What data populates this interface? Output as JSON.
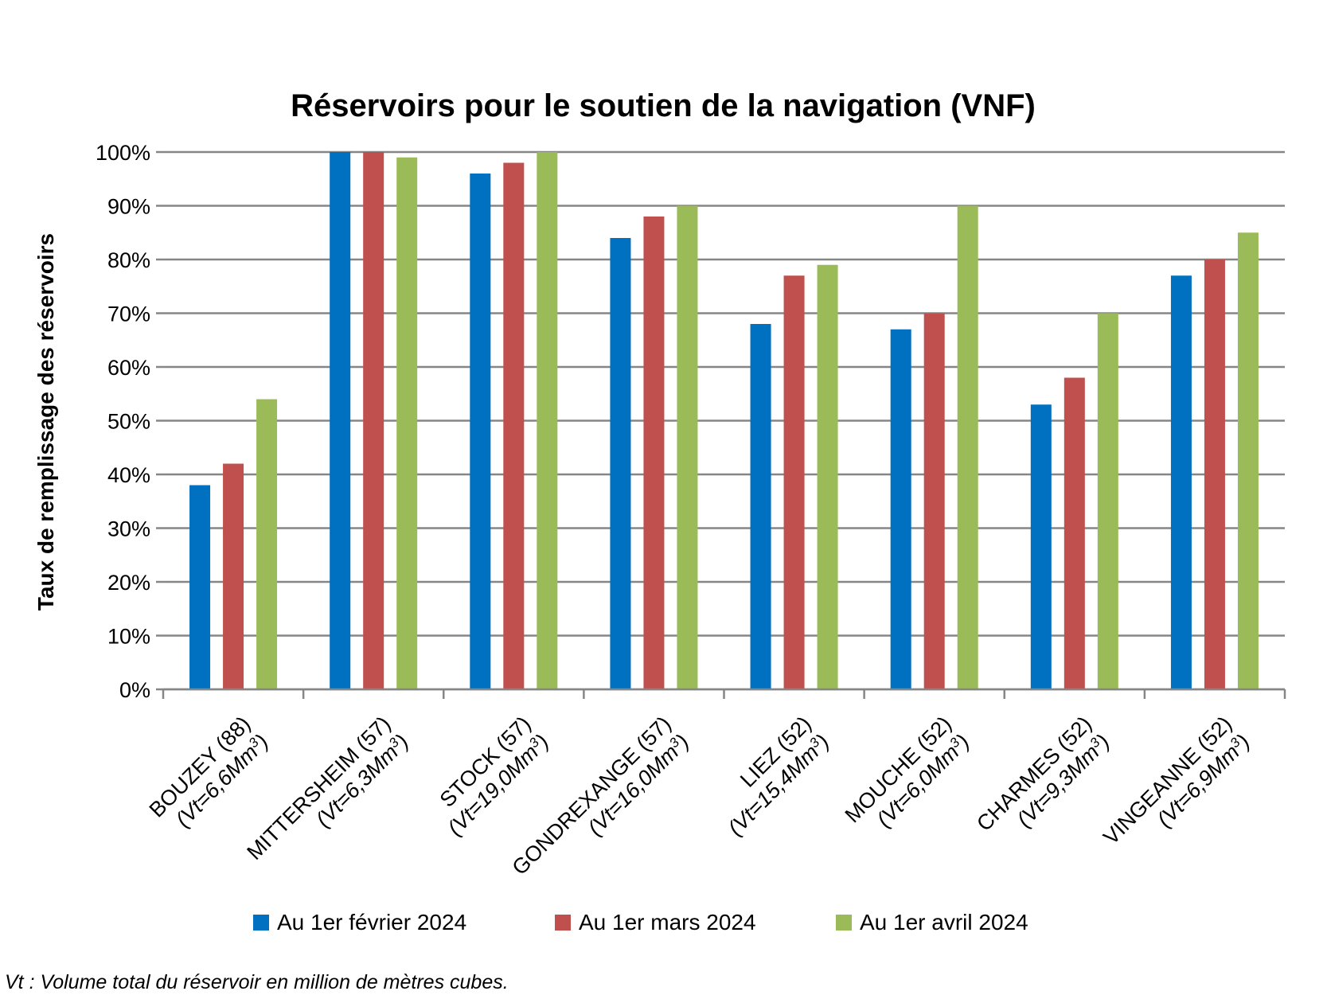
{
  "chart_data": {
    "type": "bar",
    "title": "Réservoirs pour le soutien de la navigation (VNF)",
    "ylabel": "Taux de remplissage des réservoirs",
    "xlabel": "",
    "ylim": [
      0,
      100
    ],
    "y_ticks": [
      "0%",
      "10%",
      "20%",
      "30%",
      "40%",
      "50%",
      "60%",
      "70%",
      "80%",
      "90%",
      "100%"
    ],
    "grid": true,
    "legend_position": "bottom",
    "categories": [
      {
        "name": "BOUZEY (88)",
        "sub_prefix": "(Vt=6,6Mm",
        "sup": "3",
        "sub_suffix": ")"
      },
      {
        "name": "MITTERSHEIM (57)",
        "sub_prefix": "(Vt=6,3Mm",
        "sup": "3",
        "sub_suffix": ")"
      },
      {
        "name": "STOCK (57)",
        "sub_prefix": "(Vt=19,0Mm",
        "sup": "3",
        "sub_suffix": ")"
      },
      {
        "name": "GONDREXANGE (57)",
        "sub_prefix": "(Vt=16,0Mm",
        "sup": "3",
        "sub_suffix": ")"
      },
      {
        "name": "LIEZ (52)",
        "sub_prefix": "(Vt=15,4Mm",
        "sup": "3",
        "sub_suffix": ")"
      },
      {
        "name": "MOUCHE (52)",
        "sub_prefix": "(Vt=6,0Mm",
        "sup": "3",
        "sub_suffix": ")"
      },
      {
        "name": "CHARMES (52)",
        "sub_prefix": "(Vt=9,3Mm",
        "sup": "3",
        "sub_suffix": ")"
      },
      {
        "name": "VINGEANNE (52)",
        "sub_prefix": "(Vt=6,9Mm",
        "sup": "3",
        "sub_suffix": ")"
      }
    ],
    "series": [
      {
        "name": "Au 1er février 2024",
        "color": "#0070c0",
        "values": [
          38,
          100,
          96,
          84,
          68,
          67,
          53,
          77
        ]
      },
      {
        "name": "Au 1er mars 2024",
        "color": "#c0504d",
        "values": [
          42,
          100,
          98,
          88,
          77,
          70,
          58,
          80
        ]
      },
      {
        "name": "Au 1er avril 2024",
        "color": "#9bbb59",
        "values": [
          54,
          99,
          100,
          90,
          79,
          90,
          70,
          85
        ]
      }
    ],
    "footnote": "Vt : Volume total du réservoir en million de mètres cubes."
  },
  "colors": {
    "gridline": "#868686",
    "axis": "#868686"
  }
}
